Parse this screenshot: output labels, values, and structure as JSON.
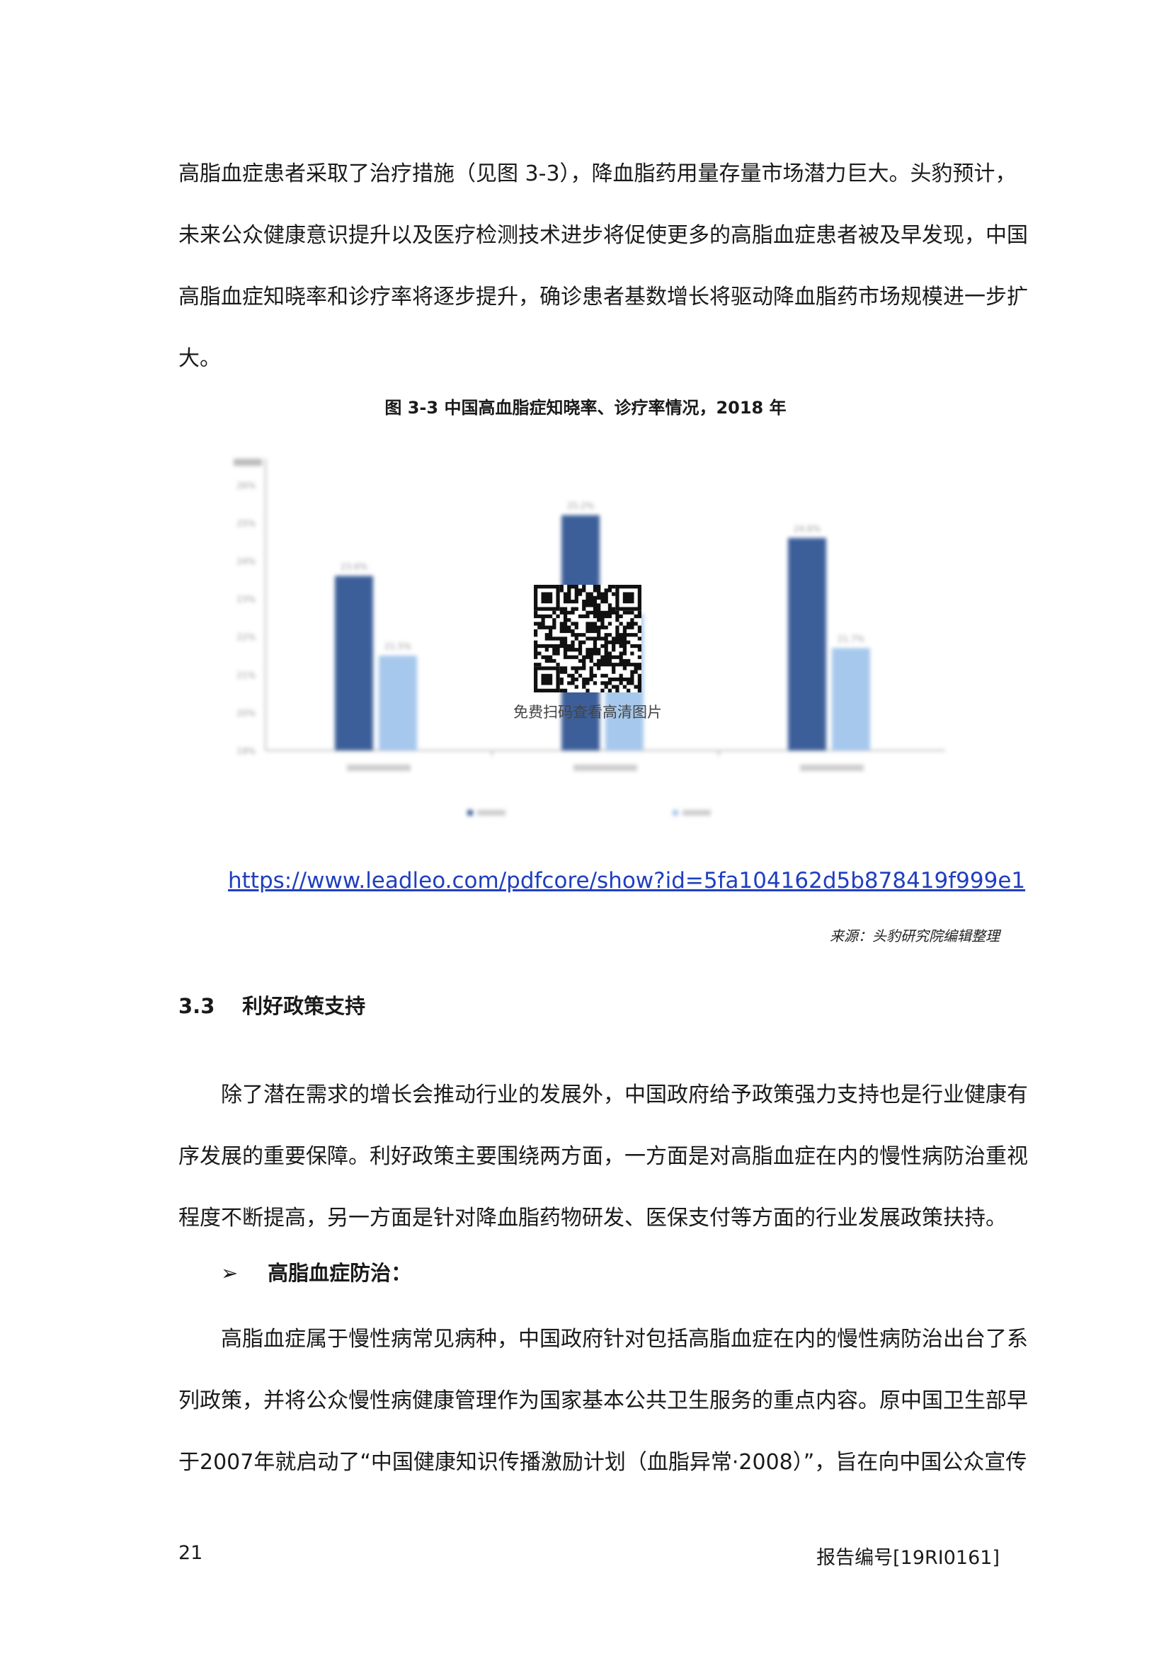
{
  "paragraph1": [
    "高脂血症患者采取了治疗措施（见图 3-3），降血脂药用量存量市场潜力巨大。头豹预计，",
    "未来公众健康意识提升以及医疗检测技术进步将促使更多的高脂血症患者被及早发现，中国",
    "高脂血症知晓率和诊疗率将逐步提升，确诊患者基数增长将驱动降血脂药市场规模进一步扩",
    "大。"
  ],
  "figure": {
    "title": "图 3-3 中国高血脂症知晓率、诊疗率情况，2018 年",
    "qr_caption": "免费扫码查看高清图片",
    "link": "https://www.leadleo.com/pdfcore/show?id=5fa104162d5b878419f999e1",
    "source": "来源：头豹研究院编辑整理"
  },
  "chart_data": {
    "type": "bar",
    "title": "",
    "categories": [
      "",
      "",
      ""
    ],
    "series": [
      {
        "name": "",
        "values": [
          23.6,
          25.2,
          24.6
        ],
        "color": "#3d5f99"
      },
      {
        "name": "",
        "values": [
          21.5,
          22.6,
          21.7
        ],
        "color": "#a6c8ec"
      }
    ],
    "ylim": [
      19,
      26.5
    ],
    "yticks": [
      19,
      20,
      21,
      22,
      23,
      24,
      25,
      26
    ],
    "ylabel": "",
    "grid": false,
    "legend": "bottom"
  },
  "section": {
    "number": "3.3",
    "title": "利好政策支持"
  },
  "paragraph2": [
    "除了潜在需求的增长会推动行业的发展外，中国政府给予政策强力支持也是行业健康有",
    "序发展的重要保障。利好政策主要围绕两方面，一方面是对高脂血症在内的慢性病防治重视",
    "程度不断提高，另一方面是针对降血脂药物研发、医保支付等方面的行业发展政策扶持。"
  ],
  "bullet": {
    "symbol": "➢",
    "text": "高脂血症防治："
  },
  "paragraph3": [
    "高脂血症属于慢性病常见病种，中国政府针对包括高脂血症在内的慢性病防治出台了系",
    "列政策，并将公众慢性病健康管理作为国家基本公共卫生服务的重点内容。原中国卫生部早",
    "于2007年就启动了“中国健康知识传播激励计划（血脂异常·2008）”，旨在向中国公众宣传"
  ],
  "footer": {
    "page": "21",
    "report_no": "报告编号[19RI0161]"
  }
}
